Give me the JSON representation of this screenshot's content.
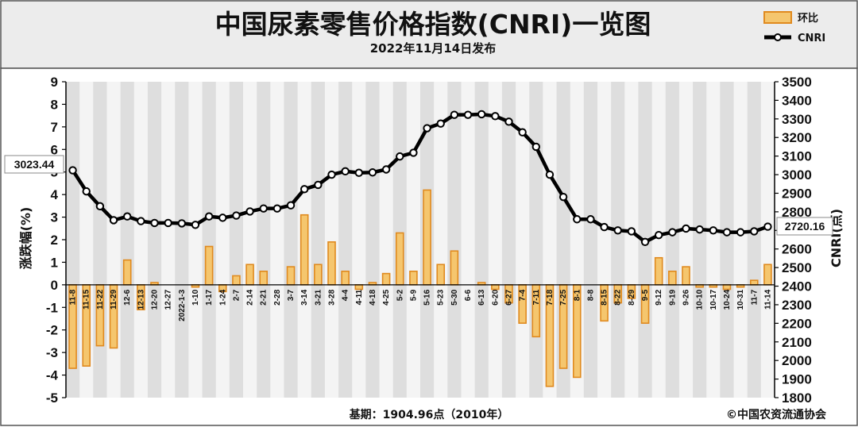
{
  "title": "中国尿素零售价格指数(CNRI)一览图",
  "subtitle": "2022年11月14日发布",
  "legend": {
    "bar_label": "环比",
    "line_label": "CNRI"
  },
  "footer": {
    "base_note": "基期：1904.96点（2010年）",
    "copyright": "©中国农资流通协会"
  },
  "callouts": {
    "first": "3023.44",
    "last": "2720.16"
  },
  "colors": {
    "bar_fill": "#f5c66e",
    "bar_stroke": "#e08a1f",
    "line": "#000000",
    "marker": "#ffffff",
    "plot_bg": "#dedede",
    "header_bg": "#ececec"
  },
  "chart_data": {
    "type": "bar+line",
    "categories": [
      "11-8",
      "11-15",
      "11-22",
      "11-29",
      "12-6",
      "12-13",
      "12-20",
      "12-27",
      "2022-1-3",
      "1-10",
      "1-17",
      "1-24",
      "2-7",
      "2-14",
      "2-21",
      "2-28",
      "3-7",
      "3-14",
      "3-21",
      "3-28",
      "4-4",
      "4-11",
      "4-18",
      "4-25",
      "5-2",
      "5-9",
      "5-16",
      "5-23",
      "5-30",
      "6-6",
      "6-13",
      "6-20",
      "6-27",
      "7-4",
      "7-11",
      "7-18",
      "7-25",
      "8-1",
      "8-8",
      "8-15",
      "8-22",
      "8-29",
      "9-5",
      "9-12",
      "9-19",
      "9-26",
      "10-10",
      "10-17",
      "10-24",
      "10-31",
      "11-7",
      "11-14"
    ],
    "series": [
      {
        "name": "环比",
        "type": "bar",
        "axis": "left",
        "values": [
          -3.7,
          -3.6,
          -2.7,
          -2.8,
          1.1,
          -1.1,
          0.1,
          0,
          0,
          -0.1,
          1.7,
          -0.3,
          0.4,
          0.9,
          0.6,
          0,
          0.8,
          3.1,
          0.9,
          1.9,
          0.6,
          -0.2,
          0.1,
          0.5,
          2.3,
          0.6,
          4.2,
          0.9,
          1.5,
          0,
          0.1,
          -0.2,
          -0.8,
          -1.7,
          -2.3,
          -4.5,
          -3.7,
          -4.1,
          0,
          -1.6,
          -0.8,
          -0.6,
          -1.7,
          1.2,
          0.6,
          0.8,
          -0.1,
          -0.1,
          -0.2,
          -0.1,
          0.2,
          0.9
        ]
      },
      {
        "name": "CNRI",
        "type": "line",
        "axis": "right",
        "values": [
          3023.44,
          2910,
          2830,
          2755,
          2775,
          2750,
          2740,
          2740,
          2738,
          2730,
          2775,
          2768,
          2780,
          2802,
          2818,
          2818,
          2835,
          2922,
          2945,
          3000,
          3018,
          3010,
          3012,
          3028,
          3098,
          3118,
          3250,
          3275,
          3322,
          3322,
          3325,
          3315,
          3285,
          3228,
          3150,
          3000,
          2880,
          2760,
          2760,
          2718,
          2700,
          2695,
          2638,
          2675,
          2690,
          2710,
          2705,
          2700,
          2690,
          2690,
          2695,
          2720.16
        ]
      }
    ],
    "y_left": {
      "label": "涨跌幅(%)",
      "min": -5,
      "max": 9,
      "step": 1
    },
    "y_right": {
      "label": "CNRI(点)",
      "min": 1800,
      "max": 3500,
      "step": 100
    },
    "grid": "vertical-bands",
    "legend_position": "top-right"
  }
}
